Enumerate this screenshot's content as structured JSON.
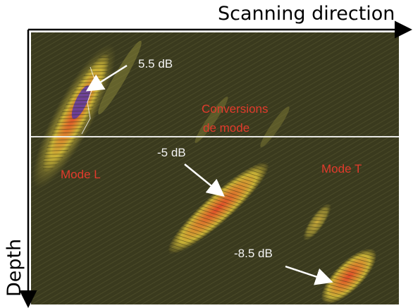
{
  "axes": {
    "horizontal_label": "Scanning direction",
    "vertical_label": "Depth"
  },
  "annotations": {
    "db_top": "5.5 dB",
    "db_middle": "-5 dB",
    "db_bottom": "-8.5 dB",
    "conversions_line1": "Conversions",
    "conversions_line2": "de mode",
    "mode_l": "Mode L",
    "mode_t": "Mode T"
  },
  "colors": {
    "background": "#3a3a1e",
    "echo_outer": "#c9b236",
    "echo_inner": "#d8502a",
    "echo_core": "#5b3aa8",
    "annotation_text": "#f4f4f4",
    "mode_text": "#e23a2c",
    "axis": "#000000"
  }
}
